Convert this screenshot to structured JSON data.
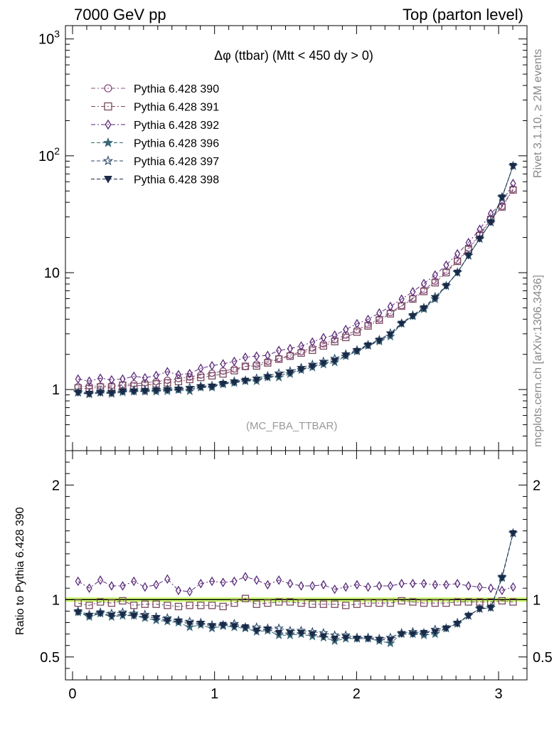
{
  "header": {
    "left": "7000 GeV pp",
    "right": "Top (parton level)"
  },
  "side_labels": {
    "rivet": "Rivet 3.1.10, ≥ 2M events",
    "mcplots": "mcplots.cern.ch [arXiv:1306.3436]"
  },
  "analysis_tag": "(MC_FBA_TTBAR)",
  "chart_data": [
    {
      "type": "line",
      "title": "Δφ (ttbar) (Mtt < 450 dy > 0)",
      "yscale": "log",
      "ylim": [
        0.3,
        1300
      ],
      "xlim": [
        -0.05,
        3.2
      ],
      "yticks": [
        "1",
        "10",
        "10^2",
        "10^3"
      ],
      "legend_position": "top-left",
      "x": [
        0.039,
        0.118,
        0.196,
        0.275,
        0.353,
        0.432,
        0.51,
        0.589,
        0.668,
        0.746,
        0.825,
        0.903,
        0.982,
        1.06,
        1.139,
        1.217,
        1.296,
        1.374,
        1.453,
        1.532,
        1.61,
        1.689,
        1.767,
        1.846,
        1.924,
        2.003,
        2.081,
        2.16,
        2.238,
        2.317,
        2.396,
        2.474,
        2.553,
        2.631,
        2.71,
        2.788,
        2.867,
        2.945,
        3.024,
        3.102
      ],
      "series": [
        {
          "name": "Pythia 6.428 390",
          "color": "#8a5080",
          "marker": "circle",
          "values": [
            1.06,
            1.07,
            1.07,
            1.08,
            1.1,
            1.12,
            1.14,
            1.17,
            1.2,
            1.24,
            1.28,
            1.33,
            1.38,
            1.44,
            1.5,
            1.57,
            1.65,
            1.74,
            1.85,
            1.97,
            2.11,
            2.27,
            2.46,
            2.67,
            2.93,
            3.23,
            3.6,
            4.03,
            4.57,
            5.23,
            6.05,
            7.1,
            8.45,
            10.3,
            12.7,
            16.2,
            21.2,
            29.0,
            37.0,
            52.0
          ]
        },
        {
          "name": "Pythia 6.428 391",
          "color": "#7a4a60",
          "marker": "square",
          "values": [
            1.03,
            1.02,
            1.05,
            1.05,
            1.09,
            1.07,
            1.09,
            1.12,
            1.14,
            1.17,
            1.22,
            1.27,
            1.31,
            1.36,
            1.45,
            1.58,
            1.59,
            1.69,
            1.82,
            1.93,
            2.05,
            2.17,
            2.36,
            2.57,
            2.79,
            3.1,
            3.5,
            3.92,
            4.45,
            5.18,
            5.95,
            6.9,
            8.2,
            10.0,
            12.5,
            15.8,
            20.8,
            28.5,
            36.5,
            51.0
          ]
        },
        {
          "name": "Pythia 6.428 392",
          "color": "#5a2a78",
          "marker": "diamond",
          "values": [
            1.23,
            1.18,
            1.25,
            1.21,
            1.23,
            1.3,
            1.26,
            1.32,
            1.42,
            1.34,
            1.37,
            1.52,
            1.6,
            1.66,
            1.74,
            1.89,
            1.93,
            1.96,
            2.16,
            2.24,
            2.36,
            2.55,
            2.78,
            2.92,
            3.26,
            3.66,
            3.98,
            4.52,
            5.14,
            5.94,
            6.87,
            8.08,
            9.55,
            11.6,
            14.5,
            18.1,
            23.5,
            32.0,
            40.0,
            58.0
          ]
        },
        {
          "name": "Pythia 6.428 396",
          "color": "#3a6878",
          "marker": "star",
          "values": [
            0.94,
            0.91,
            0.94,
            0.92,
            0.95,
            0.96,
            0.96,
            0.96,
            0.97,
            0.99,
            0.97,
            1.04,
            1.04,
            1.11,
            1.14,
            1.18,
            1.18,
            1.27,
            1.27,
            1.36,
            1.47,
            1.55,
            1.64,
            1.71,
            1.93,
            2.12,
            2.37,
            2.58,
            2.85,
            3.66,
            4.24,
            4.88,
            5.94,
            7.71,
            10.0,
            14.0,
            19.5,
            27.0,
            44.0,
            82.0
          ]
        },
        {
          "name": "Pythia 6.428 397",
          "color": "#2a4a68",
          "marker": "star-open",
          "values": [
            0.95,
            0.93,
            0.95,
            0.95,
            0.98,
            0.99,
            0.99,
            1.0,
            1.01,
            1.02,
            1.04,
            1.07,
            1.08,
            1.13,
            1.18,
            1.2,
            1.25,
            1.31,
            1.38,
            1.44,
            1.54,
            1.64,
            1.74,
            1.84,
            2.01,
            2.18,
            2.42,
            2.67,
            3.04,
            3.7,
            4.33,
            5.02,
            6.22,
            7.7,
            10.1,
            14.0,
            19.5,
            27.0,
            44.5,
            82.0
          ]
        },
        {
          "name": "Pythia 6.428 398",
          "color": "#1a2a48",
          "marker": "triangle-down",
          "values": [
            0.94,
            0.92,
            0.94,
            0.93,
            0.96,
            0.96,
            0.97,
            0.98,
            0.99,
            1.0,
            1.01,
            1.05,
            1.06,
            1.12,
            1.15,
            1.19,
            1.21,
            1.28,
            1.32,
            1.39,
            1.49,
            1.58,
            1.68,
            1.76,
            1.96,
            2.14,
            2.39,
            2.62,
            2.96,
            3.66,
            4.25,
            4.95,
            6.05,
            7.7,
            10.0,
            14.0,
            19.5,
            27.0,
            44.0,
            82.0
          ]
        }
      ]
    },
    {
      "type": "line",
      "ylabel": "Ratio to Pythia 6.428 390",
      "xlim": [
        -0.05,
        3.2
      ],
      "ylim": [
        0.3,
        2.3
      ],
      "xticks": [
        0,
        1,
        2,
        3
      ],
      "yticks": [
        0.5,
        1,
        2
      ],
      "reference_band": {
        "value": 1,
        "color": "#ccff66"
      },
      "x": [
        0.039,
        0.118,
        0.196,
        0.275,
        0.353,
        0.432,
        0.51,
        0.589,
        0.668,
        0.746,
        0.825,
        0.903,
        0.982,
        1.06,
        1.139,
        1.217,
        1.296,
        1.374,
        1.453,
        1.532,
        1.61,
        1.689,
        1.767,
        1.846,
        1.924,
        2.003,
        2.081,
        2.16,
        2.238,
        2.317,
        2.396,
        2.474,
        2.553,
        2.631,
        2.71,
        2.788,
        2.867,
        2.945,
        3.024,
        3.102
      ],
      "series": [
        {
          "name": "Pythia 6.428 391",
          "color": "#7a4a60",
          "marker": "square",
          "values": [
            0.97,
            0.95,
            0.98,
            0.97,
            0.99,
            0.95,
            0.96,
            0.96,
            0.95,
            0.94,
            0.95,
            0.95,
            0.95,
            0.94,
            0.97,
            1.01,
            0.96,
            0.97,
            0.98,
            0.98,
            0.97,
            0.96,
            0.96,
            0.96,
            0.95,
            0.96,
            0.97,
            0.97,
            0.97,
            0.99,
            0.98,
            0.97,
            0.97,
            0.97,
            0.98,
            0.98,
            0.98,
            0.98,
            0.99,
            0.98
          ]
        },
        {
          "name": "Pythia 6.428 392",
          "color": "#5a2a78",
          "marker": "diamond",
          "values": [
            1.16,
            1.1,
            1.17,
            1.12,
            1.12,
            1.16,
            1.11,
            1.13,
            1.18,
            1.08,
            1.07,
            1.14,
            1.16,
            1.15,
            1.16,
            1.2,
            1.17,
            1.13,
            1.17,
            1.14,
            1.12,
            1.12,
            1.13,
            1.09,
            1.11,
            1.13,
            1.11,
            1.12,
            1.12,
            1.14,
            1.14,
            1.14,
            1.13,
            1.13,
            1.14,
            1.12,
            1.11,
            1.1,
            1.08,
            1.11
          ]
        },
        {
          "name": "Pythia 6.428 396",
          "color": "#3a6878",
          "marker": "star",
          "values": [
            0.89,
            0.85,
            0.88,
            0.85,
            0.86,
            0.86,
            0.84,
            0.82,
            0.81,
            0.8,
            0.76,
            0.78,
            0.75,
            0.77,
            0.76,
            0.75,
            0.72,
            0.73,
            0.69,
            0.69,
            0.7,
            0.68,
            0.67,
            0.64,
            0.66,
            0.66,
            0.66,
            0.64,
            0.62,
            0.7,
            0.7,
            0.69,
            0.7,
            0.75,
            0.79,
            0.86,
            0.92,
            0.93,
            1.19,
            1.58
          ]
        },
        {
          "name": "Pythia 6.428 397",
          "color": "#2a4a68",
          "marker": "star-open",
          "values": [
            0.9,
            0.87,
            0.89,
            0.88,
            0.89,
            0.88,
            0.87,
            0.85,
            0.84,
            0.82,
            0.81,
            0.8,
            0.78,
            0.78,
            0.79,
            0.76,
            0.76,
            0.75,
            0.75,
            0.73,
            0.73,
            0.72,
            0.71,
            0.69,
            0.69,
            0.67,
            0.67,
            0.66,
            0.67,
            0.71,
            0.72,
            0.71,
            0.74,
            0.75,
            0.8,
            0.86,
            0.92,
            0.93,
            1.2,
            1.58
          ]
        },
        {
          "name": "Pythia 6.428 398",
          "color": "#1a2a48",
          "marker": "triangle-down",
          "values": [
            0.89,
            0.86,
            0.88,
            0.86,
            0.87,
            0.86,
            0.85,
            0.84,
            0.82,
            0.81,
            0.79,
            0.79,
            0.77,
            0.78,
            0.77,
            0.76,
            0.73,
            0.74,
            0.71,
            0.71,
            0.71,
            0.7,
            0.68,
            0.66,
            0.67,
            0.66,
            0.66,
            0.65,
            0.65,
            0.7,
            0.7,
            0.71,
            0.72,
            0.75,
            0.79,
            0.86,
            0.92,
            0.93,
            1.19,
            1.58
          ]
        }
      ]
    }
  ]
}
